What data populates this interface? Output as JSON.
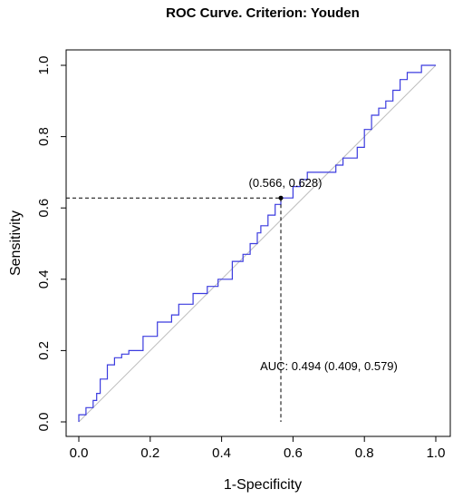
{
  "chart_data": {
    "type": "line",
    "title": "ROC Curve. Criterion: Youden",
    "xlabel": "1-Specificity",
    "ylabel": "Sensitivity",
    "xlim": [
      0,
      1
    ],
    "ylim": [
      0,
      1
    ],
    "x_ticks": [
      "0.0",
      "0.2",
      "0.4",
      "0.6",
      "0.8",
      "1.0"
    ],
    "y_ticks": [
      "0.0",
      "0.2",
      "0.4",
      "0.6",
      "0.8",
      "1.0"
    ],
    "grid": false,
    "colors": {
      "curve": "#3b3bdf",
      "diagonal": "#bdbdbd",
      "marker": "#000000"
    },
    "diagonal": [
      [
        0,
        0
      ],
      [
        1,
        1
      ]
    ],
    "optimal_point": {
      "x": 0.566,
      "y": 0.628,
      "label": "(0.566, 0.628)"
    },
    "auc_label": "AUC: 0.494 (0.409, 0.579)",
    "series": [
      {
        "x": [
          0.0,
          0.0,
          0.02,
          0.02,
          0.04,
          0.04,
          0.05,
          0.05,
          0.06,
          0.06,
          0.08,
          0.08,
          0.1,
          0.1,
          0.12,
          0.12,
          0.14,
          0.14,
          0.18,
          0.18,
          0.22,
          0.22,
          0.26,
          0.26,
          0.28,
          0.28,
          0.32,
          0.32,
          0.36,
          0.36,
          0.39,
          0.39,
          0.43,
          0.43,
          0.46,
          0.46,
          0.48,
          0.48,
          0.5,
          0.5,
          0.51,
          0.51,
          0.53,
          0.53,
          0.55,
          0.55,
          0.566,
          0.566,
          0.6,
          0.6,
          0.62,
          0.62,
          0.64,
          0.64,
          0.72,
          0.72,
          0.74,
          0.74,
          0.78,
          0.78,
          0.8,
          0.8,
          0.82,
          0.82,
          0.84,
          0.84,
          0.86,
          0.86,
          0.88,
          0.88,
          0.9,
          0.9,
          0.92,
          0.92,
          0.96,
          0.96,
          1.0
        ],
        "y": [
          0.0,
          0.02,
          0.02,
          0.04,
          0.04,
          0.06,
          0.06,
          0.08,
          0.08,
          0.12,
          0.12,
          0.16,
          0.16,
          0.18,
          0.18,
          0.19,
          0.19,
          0.2,
          0.2,
          0.24,
          0.24,
          0.28,
          0.28,
          0.3,
          0.3,
          0.33,
          0.33,
          0.36,
          0.36,
          0.38,
          0.38,
          0.4,
          0.4,
          0.45,
          0.45,
          0.47,
          0.47,
          0.5,
          0.5,
          0.53,
          0.53,
          0.55,
          0.55,
          0.58,
          0.58,
          0.61,
          0.61,
          0.628,
          0.628,
          0.66,
          0.66,
          0.68,
          0.68,
          0.7,
          0.7,
          0.72,
          0.72,
          0.74,
          0.74,
          0.77,
          0.77,
          0.82,
          0.82,
          0.86,
          0.86,
          0.88,
          0.88,
          0.9,
          0.9,
          0.93,
          0.93,
          0.96,
          0.96,
          0.98,
          0.98,
          1.0,
          1.0
        ]
      }
    ]
  }
}
